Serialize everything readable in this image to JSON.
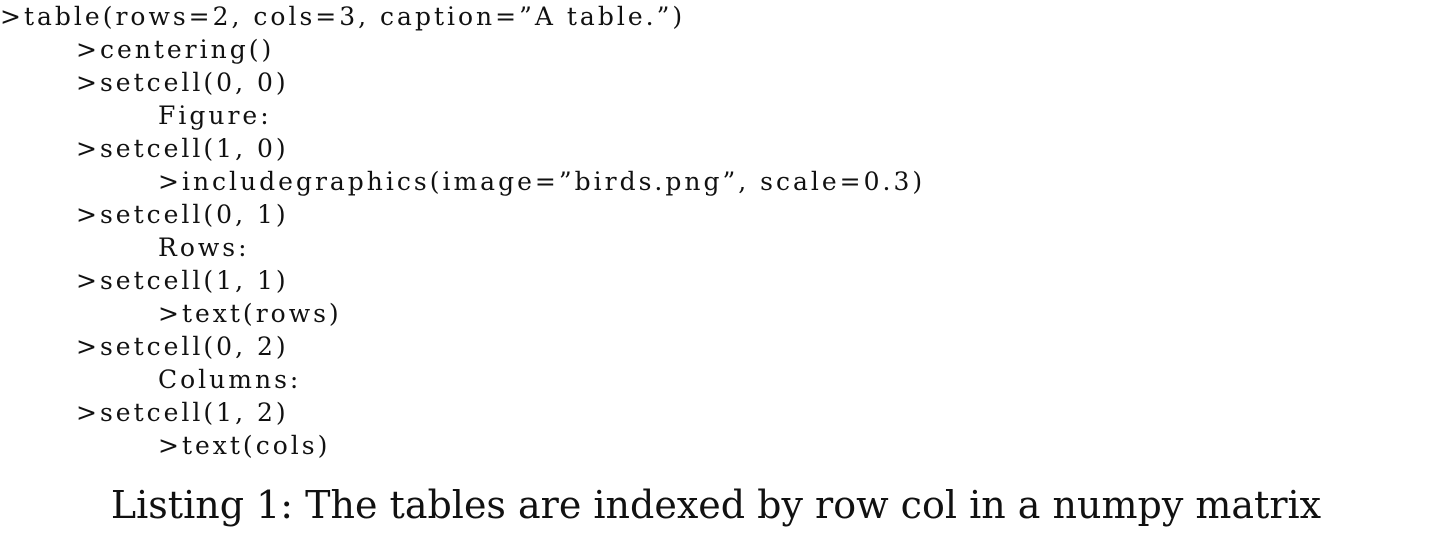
{
  "listing": {
    "lines": [
      ">table(rows=2, cols=3, caption=”A table.”)",
      ">centering()",
      ">setcell(0, 0)",
      "Figure:",
      ">setcell(1, 0)",
      ">includegraphics(image=”birds.png”, scale=0.3)",
      ">setcell(0, 1)",
      "Rows:",
      ">setcell(1, 1)",
      ">text(rows)",
      ">setcell(0, 2)",
      "Columns:",
      ">setcell(1, 2)",
      ">text(cols)"
    ],
    "caption": "Listing 1: The tables are indexed by row col in a numpy matrix"
  }
}
